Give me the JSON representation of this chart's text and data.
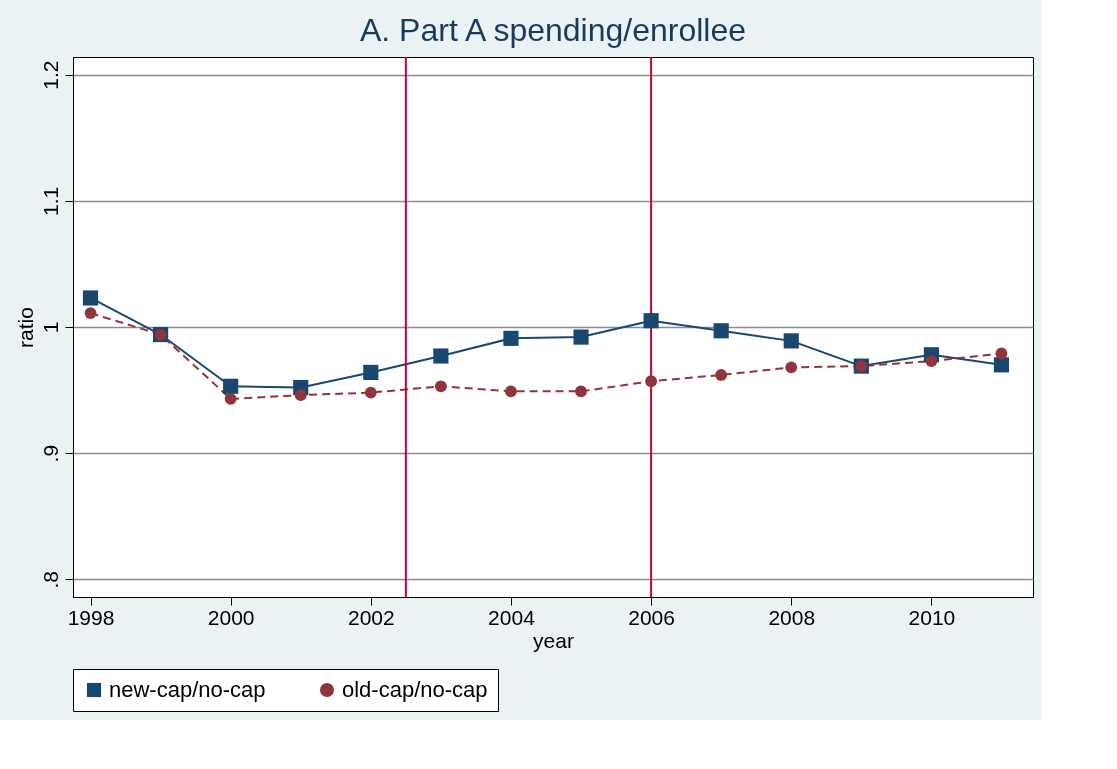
{
  "chart_data": {
    "type": "line",
    "title": "A. Part A spending/enrollee",
    "xlabel": "year",
    "ylabel": "ratio",
    "x": [
      1998,
      1999,
      2000,
      2001,
      2002,
      2003,
      2004,
      2005,
      2006,
      2007,
      2008,
      2009,
      2010,
      2011
    ],
    "series": [
      {
        "name": "new-cap/no-cap",
        "color": "#1a476f",
        "marker": "square",
        "line_style": "solid",
        "values": [
          1.023,
          0.994,
          0.953,
          0.952,
          0.964,
          0.977,
          0.991,
          0.992,
          1.005,
          0.997,
          0.989,
          0.969,
          0.978,
          0.97
        ]
      },
      {
        "name": "old-cap/no-cap",
        "color": "#90353b",
        "marker": "circle",
        "line_style": "dashed",
        "values": [
          1.011,
          0.994,
          0.943,
          0.946,
          0.948,
          0.953,
          0.949,
          0.949,
          0.957,
          0.962,
          0.968,
          0.969,
          0.973,
          0.979
        ]
      }
    ],
    "xlim": [
      1997.75,
      2011.45
    ],
    "xticks": [
      1998,
      2000,
      2002,
      2004,
      2006,
      2008,
      2010
    ],
    "ylim": [
      0.786,
      1.214
    ],
    "yticks": [
      {
        "value": 0.8,
        "label": ".8"
      },
      {
        "value": 0.9,
        "label": ".9"
      },
      1,
      1.1,
      1.2
    ],
    "ref_lines": [
      {
        "axis": "x",
        "value": 2002.5,
        "color": "#c10534"
      },
      {
        "axis": "x",
        "value": 2006,
        "color": "#c10534"
      }
    ],
    "grid": "y",
    "legend": "bottom"
  }
}
